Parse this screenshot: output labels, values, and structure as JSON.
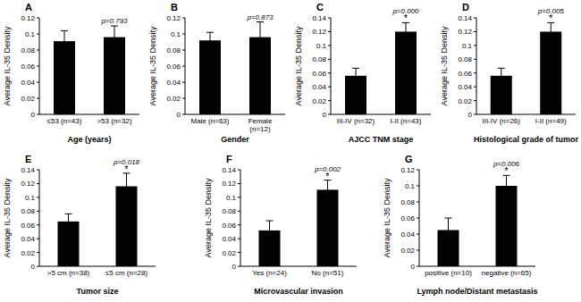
{
  "chart_data": [
    {
      "type": "bar",
      "title": "A",
      "y_label": "Average IL-35 Density",
      "x_label": "Age (years)",
      "categories": [
        "≤53 (n=43)",
        ">53 (n=32)"
      ],
      "values": [
        0.091,
        0.096
      ],
      "errors": [
        0.013,
        0.014
      ],
      "color": "#000000",
      "ylim": [
        0,
        0.12
      ],
      "yticks": [
        0,
        0.02,
        0.04,
        0.06,
        0.08,
        0.1,
        0.12
      ],
      "grid": false,
      "annotation": "p=0.793"
    },
    {
      "type": "bar",
      "title": "B",
      "y_label": "Average IL-35 Density",
      "x_label": "Gender",
      "categories": [
        "Male (n=63)",
        "Female (n=12)"
      ],
      "values": [
        0.092,
        0.096
      ],
      "errors": [
        0.01,
        0.019
      ],
      "color": "#000000",
      "ylim": [
        0,
        0.12
      ],
      "yticks": [
        0,
        0.02,
        0.04,
        0.06,
        0.08,
        0.1,
        0.12
      ],
      "grid": false,
      "annotation": "p=0.873"
    },
    {
      "type": "bar",
      "title": "C",
      "y_label": "Average IL-35 Density",
      "x_label": "AJCC TNM stage",
      "categories": [
        "III-IV (n=32)",
        "I-II (n=43)"
      ],
      "values": [
        0.056,
        0.12
      ],
      "errors": [
        0.011,
        0.013
      ],
      "color": "#000000",
      "ylim": [
        0,
        0.14
      ],
      "yticks": [
        0,
        0.02,
        0.04,
        0.06,
        0.08,
        0.1,
        0.12,
        0.14
      ],
      "grid": false,
      "annotation": "p=0.000",
      "significance_label": "*"
    },
    {
      "type": "bar",
      "title": "D",
      "y_label": "Average IL-35 Density",
      "x_label": "Histological grade of tumor",
      "categories": [
        "III-IV (n=26)",
        "I-II (n=49)"
      ],
      "values": [
        0.056,
        0.12
      ],
      "errors": [
        0.011,
        0.013
      ],
      "color": "#000000",
      "ylim": [
        0,
        0.14
      ],
      "yticks": [
        0,
        0.02,
        0.04,
        0.06,
        0.08,
        0.1,
        0.12,
        0.14
      ],
      "grid": false,
      "annotation": "p=0.005",
      "significance_label": "*"
    },
    {
      "type": "bar",
      "title": "E",
      "y_label": "Average IL-35 Density",
      "x_label": "Tumor size",
      "categories": [
        ">5 cm (n=38)",
        "≤5 cm (n=28)"
      ],
      "values": [
        0.065,
        0.116
      ],
      "errors": [
        0.011,
        0.019
      ],
      "color": "#000000",
      "ylim": [
        0,
        0.14
      ],
      "yticks": [
        0,
        0.02,
        0.04,
        0.06,
        0.08,
        0.1,
        0.12,
        0.14
      ],
      "grid": false,
      "annotation": "p=0.018",
      "significance_label": "*"
    },
    {
      "type": "bar",
      "title": "F",
      "y_label": "Average IL-35 Density",
      "x_label": "Microvascular invasion",
      "categories": [
        "Yes (n=24)",
        "No (n=51)"
      ],
      "values": [
        0.052,
        0.111
      ],
      "errors": [
        0.014,
        0.014
      ],
      "color": "#000000",
      "ylim": [
        0,
        0.14
      ],
      "yticks": [
        0,
        0.02,
        0.04,
        0.06,
        0.08,
        0.1,
        0.12,
        0.14
      ],
      "grid": false,
      "annotation": "p=0.002",
      "significance_label": "*"
    },
    {
      "type": "bar",
      "title": "G",
      "y_label": "Average IL-35 Density",
      "x_label": "Lymph node/Distant metastasis",
      "categories": [
        "positive (n=10)",
        "negative (n=65)"
      ],
      "values": [
        0.045,
        0.1
      ],
      "errors": [
        0.015,
        0.013
      ],
      "color": "#000000",
      "ylim": [
        0,
        0.12
      ],
      "yticks": [
        0,
        0.02,
        0.04,
        0.06,
        0.08,
        0.1,
        0.12
      ],
      "grid": false,
      "annotation": "p=0.006",
      "significance_label": "*"
    }
  ]
}
